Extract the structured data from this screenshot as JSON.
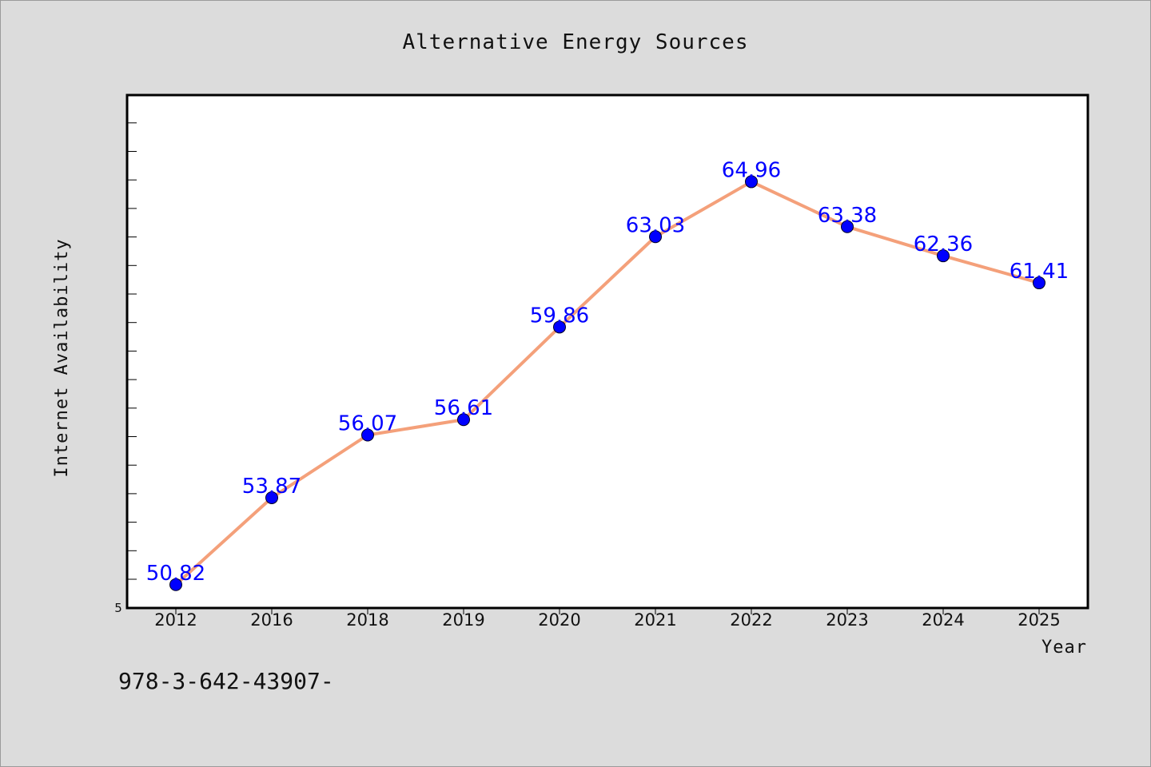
{
  "chart_data": {
    "type": "line",
    "title": "Alternative Energy Sources",
    "xlabel": "Year",
    "ylabel": "Internet Availability",
    "categories": [
      "2012",
      "2016",
      "2018",
      "2019",
      "2020",
      "2021",
      "2022",
      "2023",
      "2024",
      "2025"
    ],
    "series": [
      {
        "values": [
          50.82,
          53.87,
          56.07,
          56.61,
          59.86,
          63.03,
          64.96,
          63.38,
          62.36,
          61.41
        ],
        "data_labels": [
          "50.82",
          "53.87",
          "56.07",
          "56.61",
          "59.86",
          "63.03",
          "64.96",
          "63.38",
          "62.36",
          "61.41"
        ]
      }
    ],
    "y_tick_labels": [
      "5"
    ],
    "ylim": [
      50.0,
      68.0
    ],
    "grid": false,
    "legend": "none",
    "colors": {
      "line": "#f4a07a",
      "marker": "#0000ff",
      "data_label": "#0000ff",
      "plot_background": "#ffffff",
      "page_background": "#dcdcdc"
    }
  },
  "footnote": "978-3-642-43907-"
}
